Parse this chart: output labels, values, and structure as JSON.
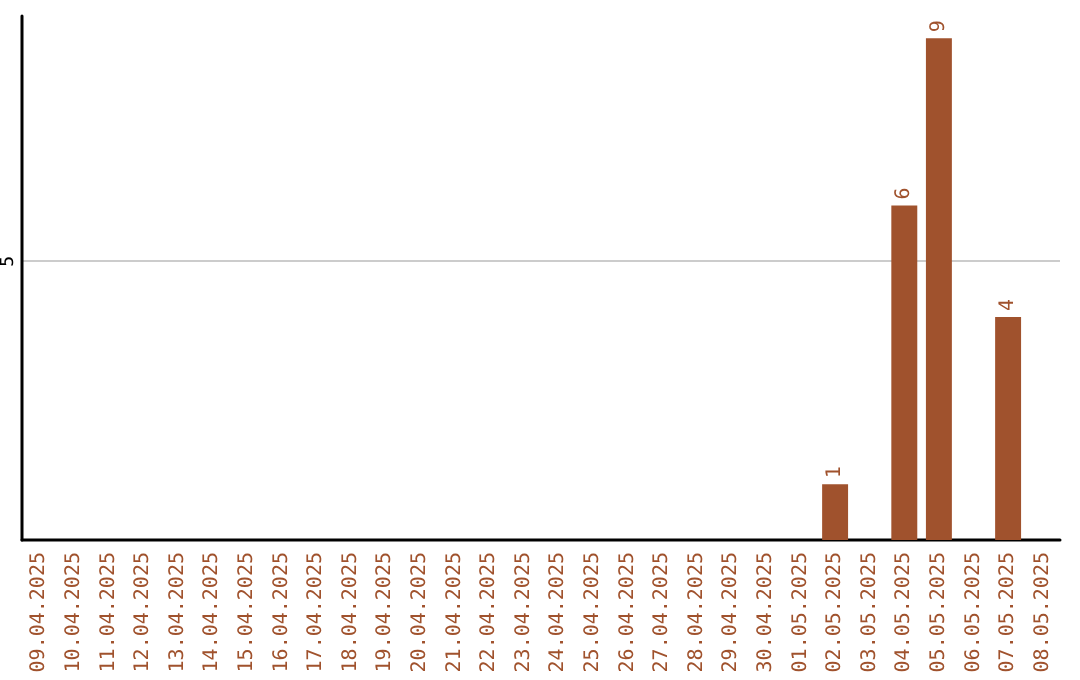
{
  "chart_data": {
    "type": "bar",
    "categories": [
      "09.04.2025",
      "10.04.2025",
      "11.04.2025",
      "12.04.2025",
      "13.04.2025",
      "14.04.2025",
      "15.04.2025",
      "16.04.2025",
      "17.04.2025",
      "18.04.2025",
      "19.04.2025",
      "20.04.2025",
      "21.04.2025",
      "22.04.2025",
      "23.04.2025",
      "24.04.2025",
      "25.04.2025",
      "26.04.2025",
      "27.04.2025",
      "28.04.2025",
      "29.04.2025",
      "30.04.2025",
      "01.05.2025",
      "02.05.2025",
      "03.05.2025",
      "04.05.2025",
      "05.05.2025",
      "06.05.2025",
      "07.05.2025",
      "08.05.2025"
    ],
    "values": [
      null,
      null,
      null,
      null,
      null,
      null,
      null,
      null,
      null,
      null,
      null,
      null,
      null,
      null,
      null,
      null,
      null,
      null,
      null,
      null,
      null,
      null,
      null,
      1,
      null,
      6,
      9,
      null,
      4,
      null
    ],
    "color": "#a0522d",
    "ylim": [
      0,
      9.4
    ],
    "yticks": [
      5
    ],
    "grid": "y",
    "data_labels": true
  }
}
